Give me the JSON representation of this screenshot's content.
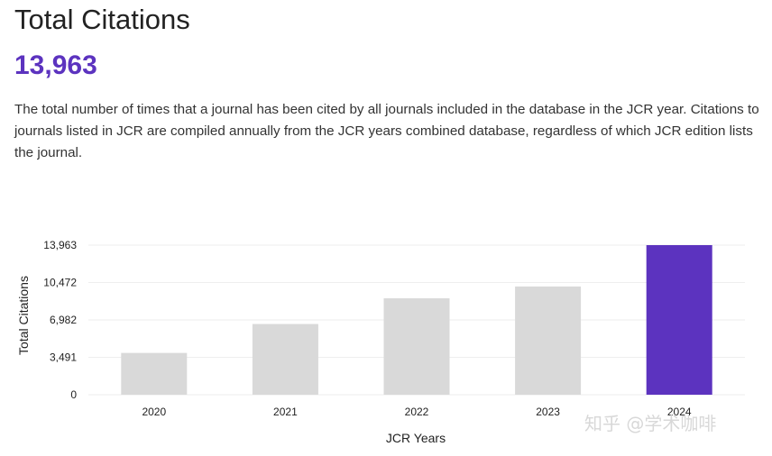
{
  "header": {
    "title": "Total Citations",
    "value": "13,963",
    "description": "The total number of times that a journal has been cited by all journals included in the database in the JCR year. Citations to journals listed in JCR are compiled annually from the JCR years combined database, regardless of which JCR edition lists the journal."
  },
  "watermark": "知乎 @学术咖啡",
  "colors": {
    "accent": "#5c33bf",
    "bar": "#d9d9d9",
    "grid": "#eeeeee"
  },
  "chart_data": {
    "type": "bar",
    "categories": [
      "2020",
      "2021",
      "2022",
      "2023",
      "2024"
    ],
    "values": [
      3900,
      6600,
      9000,
      10100,
      13963
    ],
    "highlight_index": 4,
    "xlabel": "JCR Years",
    "ylabel": "Total Citations",
    "ylim": [
      0,
      13963
    ],
    "yticks": [
      0,
      3491,
      6982,
      10472,
      13963
    ],
    "ytick_labels": [
      "0",
      "3,491",
      "6,982",
      "10,472",
      "13,963"
    ],
    "grid": true
  }
}
